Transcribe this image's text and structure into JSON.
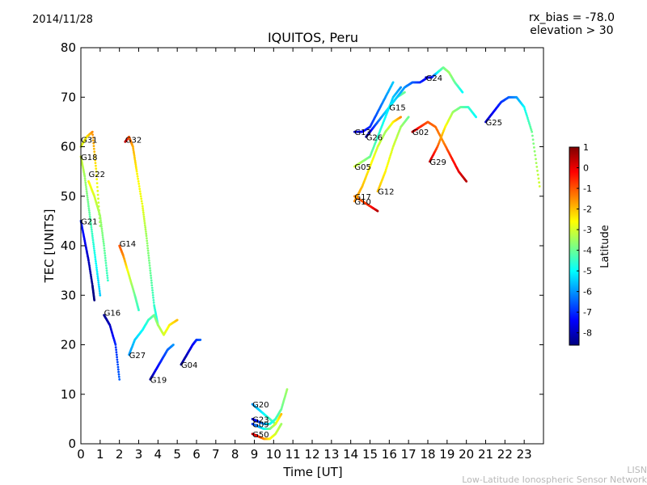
{
  "header": {
    "date": "2014/11/28",
    "rx_bias": "rx_bias = -78.0",
    "elevation": "elevation > 30"
  },
  "footer": {
    "line1": "LISN",
    "line2": "Low-Latitude Ionospheric Sensor Network"
  },
  "chart_data": {
    "type": "scatter",
    "title": "IQUITOS, Peru",
    "xlabel": "Time [UT]",
    "ylabel": "TEC [UNITS]",
    "xlim": [
      0,
      24
    ],
    "ylim": [
      0,
      80
    ],
    "xticks": [
      "0",
      "1",
      "2",
      "3",
      "4",
      "5",
      "6",
      "7",
      "8",
      "9",
      "10",
      "11",
      "12",
      "13",
      "14",
      "15",
      "16",
      "17",
      "18",
      "19",
      "20",
      "21",
      "22",
      "23"
    ],
    "yticks": [
      "0",
      "10",
      "20",
      "30",
      "40",
      "50",
      "60",
      "70",
      "80"
    ],
    "colorbar": {
      "label": "Latitude",
      "range": [
        -8.6,
        1
      ],
      "ticks": [
        "1",
        "0",
        "-1",
        "-2",
        "-3",
        "-4",
        "-5",
        "-6",
        "-7",
        "-8"
      ]
    },
    "satellites": [
      {
        "name": "G31",
        "label_x": 0.0,
        "label_y": 61.5,
        "x": [
          0.0,
          0.3,
          0.6,
          0.8,
          1.0
        ],
        "y": [
          60,
          62,
          63,
          55,
          44
        ],
        "lat": [
          -3,
          -2.5,
          -1.5,
          -2.5,
          -3.5
        ]
      },
      {
        "name": "G18",
        "label_x": 0.0,
        "label_y": 58,
        "x": [
          0.0,
          0.2,
          0.4,
          0.6,
          0.8,
          1.0
        ],
        "y": [
          58,
          54,
          48,
          42,
          36,
          30
        ],
        "lat": [
          -3,
          -3.5,
          -4,
          -4.5,
          -5,
          -5.5
        ]
      },
      {
        "name": "G22",
        "label_x": 0.4,
        "label_y": 54.5,
        "x": [
          0.4,
          0.7,
          1.0,
          1.2,
          1.4
        ],
        "y": [
          53,
          50,
          46,
          40,
          33
        ],
        "lat": [
          -2.5,
          -3,
          -3.5,
          -4,
          -4.5
        ]
      },
      {
        "name": "G21",
        "label_x": 0.0,
        "label_y": 45,
        "x": [
          0.0,
          0.2,
          0.4,
          0.6,
          0.7
        ],
        "y": [
          45,
          41,
          37,
          32,
          29
        ],
        "lat": [
          -7,
          -7.5,
          -8,
          -8.5,
          -8.6
        ]
      },
      {
        "name": "G32",
        "label_x": 2.3,
        "label_y": 61.5,
        "x": [
          2.3,
          2.5,
          2.7,
          2.9,
          3.2,
          3.4,
          3.6,
          3.8,
          4.0
        ],
        "y": [
          61,
          62,
          60,
          55,
          48,
          42,
          35,
          28,
          24
        ],
        "lat": [
          0.5,
          -1,
          -1.8,
          -2.5,
          -2.8,
          -3.5,
          -4,
          -4.5,
          -5
        ]
      },
      {
        "name": "G14",
        "label_x": 2.0,
        "label_y": 40.5,
        "x": [
          2.0,
          2.2,
          2.5,
          2.8,
          3.0
        ],
        "y": [
          40,
          38,
          34,
          30,
          27
        ],
        "lat": [
          -1,
          -1.5,
          -3,
          -4,
          -4.5
        ]
      },
      {
        "name": "G16",
        "label_x": 1.2,
        "label_y": 26.5,
        "x": [
          1.2,
          1.5,
          1.8,
          2.0
        ],
        "y": [
          26,
          24,
          20,
          13
        ],
        "lat": [
          -8.5,
          -8,
          -7,
          -6.5
        ]
      },
      {
        "name": "G27",
        "label_x": 2.5,
        "label_y": 18,
        "x": [
          2.5,
          2.8,
          3.2,
          3.5,
          3.8,
          4.0,
          4.3,
          4.6,
          5.0
        ],
        "y": [
          18,
          21,
          23,
          25,
          26,
          24,
          22,
          24,
          25
        ],
        "lat": [
          -6,
          -5.5,
          -5,
          -4.5,
          -4,
          -3.5,
          -3,
          -2.5,
          -2
        ]
      },
      {
        "name": "G19",
        "label_x": 3.6,
        "label_y": 13,
        "x": [
          3.6,
          3.9,
          4.2,
          4.5,
          4.8
        ],
        "y": [
          13,
          15,
          17,
          19,
          20
        ],
        "lat": [
          -8.5,
          -7.5,
          -7,
          -6.5,
          -6
        ]
      },
      {
        "name": "G04",
        "label_x": 5.2,
        "label_y": 16,
        "x": [
          5.2,
          5.5,
          5.8,
          6.0,
          6.2
        ],
        "y": [
          16,
          18,
          20,
          21,
          21
        ],
        "lat": [
          -8.5,
          -8,
          -7.5,
          -7,
          -6.5
        ]
      },
      {
        "name": "G20",
        "label_x": 8.9,
        "label_y": 8,
        "x": [
          8.9,
          9.2,
          9.5,
          9.8,
          10.1
        ],
        "y": [
          8,
          7,
          6,
          5,
          4
        ],
        "lat": [
          -6,
          -5.5,
          -5,
          -4.5,
          -4
        ]
      },
      {
        "name": "G23",
        "label_x": 8.9,
        "label_y": 5,
        "x": [
          8.9,
          9.2,
          9.5,
          9.8,
          10.1,
          10.4,
          10.7
        ],
        "y": [
          5,
          4.5,
          4,
          4,
          5,
          7,
          11
        ],
        "lat": [
          -8,
          -7,
          -6,
          -5,
          -4.5,
          -4,
          -3.5
        ]
      },
      {
        "name": "G09",
        "label_x": 8.9,
        "label_y": 4,
        "x": [
          8.9,
          9.2,
          9.5,
          9.8,
          10.1,
          10.4
        ],
        "y": [
          4,
          3.5,
          3,
          3,
          4,
          6
        ],
        "lat": [
          -7,
          -6,
          -5,
          -4,
          -3,
          -2
        ]
      },
      {
        "name": "G50",
        "label_x": 8.9,
        "label_y": 2,
        "x": [
          8.9,
          9.2,
          9.5,
          9.8,
          10.1,
          10.4
        ],
        "y": [
          2,
          1.5,
          1,
          1,
          2,
          4
        ],
        "lat": [
          0.5,
          -0.5,
          -1.5,
          -2.5,
          -3,
          -3.5
        ]
      },
      {
        "name": "G13",
        "label_x": 14.2,
        "label_y": 63,
        "x": [
          14.2,
          14.6,
          15.0,
          15.4,
          15.8,
          16.2
        ],
        "y": [
          63,
          63,
          64,
          67,
          70,
          73
        ],
        "lat": [
          -8,
          -7.5,
          -7,
          -6.5,
          -6,
          -5.5
        ]
      },
      {
        "name": "G26",
        "label_x": 14.8,
        "label_y": 62,
        "x": [
          14.8,
          15.2,
          15.6,
          16.0,
          16.4,
          16.8
        ],
        "y": [
          62,
          64,
          66,
          68,
          70,
          71
        ],
        "lat": [
          -8.5,
          -7,
          -6,
          -5,
          -4.5,
          -4
        ]
      },
      {
        "name": "G05",
        "label_x": 14.2,
        "label_y": 56,
        "x": [
          14.2,
          14.6,
          15.0,
          15.4,
          15.8,
          16.2,
          16.6
        ],
        "y": [
          56,
          57,
          58,
          62,
          66,
          70,
          72
        ],
        "lat": [
          -3,
          -3.5,
          -4,
          -4.5,
          -5,
          -5.5,
          -6
        ]
      },
      {
        "name": "G15",
        "label_x": 16.0,
        "label_y": 68,
        "x": [
          16.0,
          16.4,
          16.8,
          17.2,
          17.6,
          18.0
        ],
        "y": [
          68,
          70,
          72,
          73,
          73,
          74
        ],
        "lat": [
          -5,
          -5.5,
          -6,
          -6.5,
          -7,
          -7.5
        ]
      },
      {
        "name": "G24",
        "label_x": 17.9,
        "label_y": 74,
        "x": [
          17.9,
          18.2,
          18.5,
          18.8,
          19.1,
          19.4,
          19.8
        ],
        "y": [
          74,
          74,
          75,
          76,
          75,
          73,
          71
        ],
        "lat": [
          -8,
          -7.5,
          -5,
          -4,
          -3.5,
          -4,
          -5
        ]
      },
      {
        "name": "G02",
        "label_x": 17.2,
        "label_y": 63,
        "x": [
          17.2,
          17.6,
          18.0,
          18.4,
          18.8,
          19.2,
          19.6,
          20.0
        ],
        "y": [
          63,
          64,
          65,
          64,
          61,
          58,
          55,
          53
        ],
        "lat": [
          0.5,
          -0.5,
          -1,
          -1.2,
          -1.5,
          -0.5,
          0,
          0.5
        ]
      },
      {
        "name": "G29",
        "label_x": 18.1,
        "label_y": 57,
        "x": [
          18.1,
          18.5,
          18.9,
          19.3,
          19.7,
          20.1,
          20.5
        ],
        "y": [
          57,
          60,
          64,
          67,
          68,
          68,
          66
        ],
        "lat": [
          0.5,
          -1,
          -2.5,
          -3.5,
          -4,
          -4.5,
          -5
        ]
      },
      {
        "name": "G17",
        "label_x": 14.2,
        "label_y": 50,
        "x": [
          14.2,
          14.6,
          15.0,
          15.4
        ],
        "y": [
          50,
          49,
          48,
          47
        ],
        "lat": [
          -1.5,
          -1,
          -0.5,
          0.5
        ]
      },
      {
        "name": "G10",
        "label_x": 14.2,
        "label_y": 49,
        "x": [
          14.2,
          14.6,
          15.0,
          15.4,
          15.8,
          16.2,
          16.6
        ],
        "y": [
          49,
          52,
          56,
          60,
          63,
          65,
          66
        ],
        "lat": [
          -1.5,
          -2,
          -2.5,
          -3,
          -3.5,
          -2.5,
          -1.5
        ]
      },
      {
        "name": "G12",
        "label_x": 15.4,
        "label_y": 51,
        "x": [
          15.4,
          15.8,
          16.2,
          16.6,
          17.0
        ],
        "y": [
          51,
          55,
          60,
          64,
          66
        ],
        "lat": [
          -2,
          -2.5,
          -3,
          -3.5,
          -4
        ]
      },
      {
        "name": "G25",
        "label_x": 21.0,
        "label_y": 65,
        "x": [
          21.0,
          21.4,
          21.8,
          22.2,
          22.6,
          23.0,
          23.4,
          23.8
        ],
        "y": [
          65,
          67,
          69,
          70,
          70,
          68,
          63,
          52
        ],
        "lat": [
          -8,
          -7.5,
          -7,
          -6.5,
          -6,
          -5,
          -4,
          -3
        ]
      }
    ]
  }
}
